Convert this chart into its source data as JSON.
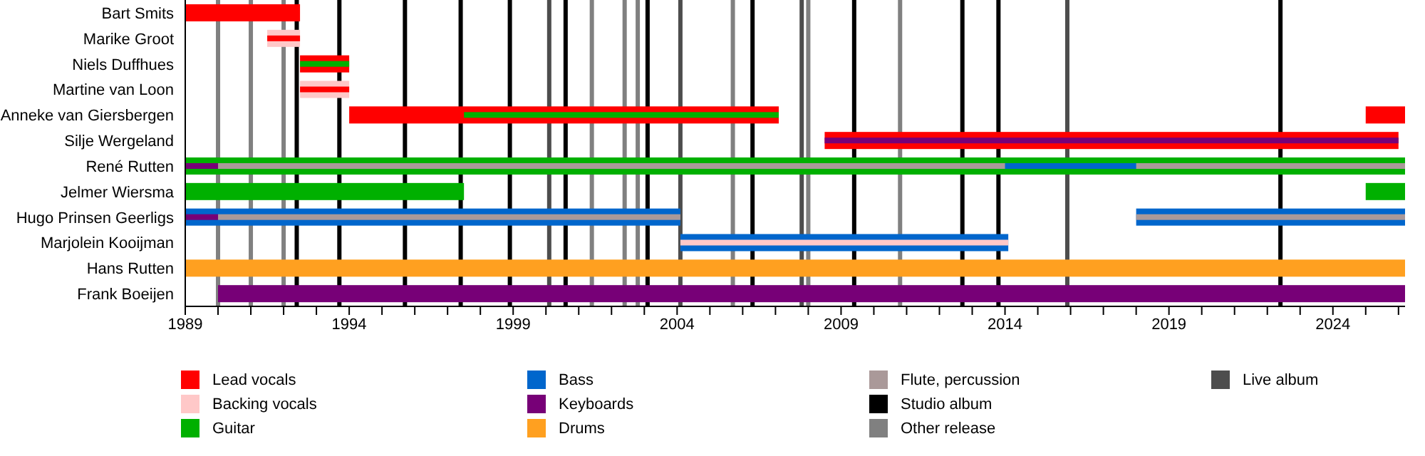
{
  "chart_data": {
    "type": "bar",
    "orientation": "horizontal",
    "categories": [
      "Bart Smits",
      "Marike Groot",
      "Niels Duffhues",
      "Martine van Loon",
      "Anneke van Giersbergen",
      "Silje Wergeland",
      "René Rutten",
      "Jelmer Wiersma",
      "Hugo Prinsen Geerligs",
      "Marjolein Kooijman",
      "Hans Rutten",
      "Frank Boeijen"
    ],
    "series": [
      {
        "name": "Lead vocals",
        "color": "#ff0000",
        "base": [
          1989,
          null,
          1992.5,
          null,
          1994,
          2008.5,
          null,
          null,
          null,
          null,
          null,
          null
        ],
        "values": [
          3.5,
          null,
          1.5,
          null,
          13.1,
          17.5,
          null,
          null,
          null,
          null,
          null,
          null
        ]
      },
      {
        "name": "Backing vocals",
        "color": "#ffc8c8",
        "base": [
          null,
          1991.5,
          null,
          1992.5,
          null,
          null,
          null,
          null,
          null,
          null,
          null,
          null
        ],
        "values": [
          null,
          1,
          null,
          1.5,
          null,
          null,
          null,
          null,
          null,
          null,
          null,
          null
        ]
      },
      {
        "name": "Guitar",
        "color": "#00b000",
        "base": [
          null,
          null,
          null,
          null,
          null,
          null,
          1989,
          1989,
          null,
          null,
          null,
          null
        ],
        "values": [
          null,
          null,
          null,
          null,
          null,
          null,
          37.2,
          8.5,
          null,
          null,
          null,
          null
        ]
      },
      {
        "name": "Bass",
        "color": "#0066cc",
        "base": [
          null,
          null,
          null,
          null,
          null,
          null,
          null,
          null,
          1989,
          2004.1,
          null,
          null
        ],
        "values": [
          null,
          null,
          null,
          null,
          null,
          null,
          null,
          null,
          15.1,
          10,
          null,
          null
        ]
      },
      {
        "name": "Keyboards",
        "color": "#770077",
        "base": [
          null,
          null,
          null,
          null,
          null,
          null,
          null,
          null,
          null,
          null,
          null,
          1990
        ],
        "values": [
          null,
          null,
          null,
          null,
          null,
          null,
          null,
          null,
          null,
          null,
          null,
          36.2
        ]
      },
      {
        "name": "Drums",
        "color": "#ffa020",
        "base": [
          null,
          null,
          null,
          null,
          null,
          null,
          null,
          null,
          null,
          null,
          1989,
          null
        ],
        "values": [
          null,
          null,
          null,
          null,
          null,
          null,
          null,
          null,
          null,
          null,
          37.2,
          null
        ]
      },
      {
        "color": "#ff0000",
        "base": [
          null,
          1991.5,
          null,
          1992.5,
          2025,
          null,
          null,
          null,
          null,
          null,
          null,
          null
        ],
        "values": [
          null,
          1,
          null,
          1.5,
          1.2,
          null,
          null,
          null,
          null,
          null,
          null,
          null
        ]
      },
      {
        "color": "#00b000",
        "base": [
          null,
          null,
          1992.5,
          null,
          1997.5,
          null,
          null,
          2025,
          null,
          null,
          null,
          null
        ],
        "values": [
          null,
          null,
          1.5,
          null,
          9.6,
          null,
          null,
          1.2,
          null,
          null,
          null,
          null
        ]
      },
      {
        "name": "Flute, percussion",
        "color": "#aa9999",
        "base": [
          null,
          null,
          null,
          null,
          null,
          null,
          1990,
          null,
          1990,
          null,
          null,
          null
        ],
        "values": [
          null,
          null,
          null,
          null,
          null,
          null,
          36.2,
          null,
          14.1,
          null,
          null,
          null
        ]
      },
      {
        "color": "#0066cc",
        "base": [
          null,
          null,
          null,
          null,
          null,
          null,
          2014,
          null,
          2018,
          null,
          null,
          null
        ],
        "values": [
          null,
          null,
          null,
          null,
          null,
          null,
          4,
          null,
          8.2,
          null,
          null,
          null
        ]
      },
      {
        "color": "#aa9999",
        "base": [
          null,
          null,
          null,
          null,
          null,
          null,
          null,
          null,
          2018,
          null,
          null,
          null
        ],
        "values": [
          null,
          null,
          null,
          null,
          null,
          null,
          null,
          null,
          8.2,
          null,
          null,
          null
        ]
      },
      {
        "color": "#770077",
        "base": [
          null,
          null,
          null,
          null,
          null,
          2008.5,
          1989,
          null,
          1989,
          null,
          null,
          null
        ],
        "values": [
          null,
          null,
          null,
          null,
          null,
          17.5,
          1,
          null,
          1,
          null,
          null,
          null
        ]
      },
      {
        "color": "#ffc8c8",
        "base": [
          null,
          null,
          null,
          null,
          null,
          null,
          null,
          null,
          null,
          2004.1,
          null,
          null
        ],
        "values": [
          null,
          null,
          null,
          null,
          null,
          null,
          null,
          null,
          null,
          10,
          null,
          null
        ]
      }
    ],
    "xlim": [
      1989,
      2026.2
    ],
    "xticks": [
      1989,
      {
        "value": 1990,
        "label": null
      },
      {
        "value": 1991,
        "label": null
      },
      {
        "value": 1992,
        "label": null
      },
      {
        "value": 1993,
        "label": null
      },
      1994,
      {
        "value": 1995,
        "label": null
      },
      {
        "value": 1996,
        "label": null
      },
      {
        "value": 1997,
        "label": null
      },
      {
        "value": 1998,
        "label": null
      },
      1999,
      {
        "value": 2000,
        "label": null
      },
      {
        "value": 2001,
        "label": null
      },
      {
        "value": 2002,
        "label": null
      },
      {
        "value": 2003,
        "label": null
      },
      2004,
      {
        "value": 2005,
        "label": null
      },
      {
        "value": 2006,
        "label": null
      },
      {
        "value": 2007,
        "label": null
      },
      {
        "value": 2008,
        "label": null
      },
      2009,
      {
        "value": 2010,
        "label": null
      },
      {
        "value": 2011,
        "label": null
      },
      {
        "value": 2012,
        "label": null
      },
      {
        "value": 2013,
        "label": null
      },
      2014,
      {
        "value": 2015,
        "label": null
      },
      {
        "value": 2016,
        "label": null
      },
      {
        "value": 2017,
        "label": null
      },
      {
        "value": 2018,
        "label": null
      },
      2019,
      {
        "value": 2020,
        "label": null
      },
      {
        "value": 2021,
        "label": null
      },
      {
        "value": 2022,
        "label": null
      },
      {
        "value": 2023,
        "label": null
      },
      2024,
      {
        "value": 2025,
        "label": null
      },
      {
        "value": 2026,
        "label": null
      }
    ],
    "ref_lines": [
      {
        "axis": "x",
        "value": 1992.4,
        "label": "Studio album",
        "color": "#000000"
      },
      {
        "axis": "x",
        "value": 1993.7,
        "color": "#000000"
      },
      {
        "axis": "x",
        "value": 1995.7,
        "color": "#000000"
      },
      {
        "axis": "x",
        "value": 1997.4,
        "color": "#000000"
      },
      {
        "axis": "x",
        "value": 1998.9,
        "color": "#000000"
      },
      {
        "axis": "x",
        "value": 2000.6,
        "color": "#000000"
      },
      {
        "axis": "x",
        "value": 2003.1,
        "color": "#000000"
      },
      {
        "axis": "x",
        "value": 2006.3,
        "color": "#000000"
      },
      {
        "axis": "x",
        "value": 2009.4,
        "color": "#000000"
      },
      {
        "axis": "x",
        "value": 2012.7,
        "color": "#000000"
      },
      {
        "axis": "x",
        "value": 2013.8,
        "color": "#000000"
      },
      {
        "axis": "x",
        "value": 2022.4,
        "color": "#000000"
      },
      {
        "axis": "x",
        "value": 1990,
        "label": "Other release",
        "color": "#808080"
      },
      {
        "axis": "x",
        "value": 1991,
        "color": "#808080"
      },
      {
        "axis": "x",
        "value": 1992,
        "color": "#808080"
      },
      {
        "axis": "x",
        "value": 2001.4,
        "color": "#808080"
      },
      {
        "axis": "x",
        "value": 2002.4,
        "color": "#808080"
      },
      {
        "axis": "x",
        "value": 2002.8,
        "color": "#808080"
      },
      {
        "axis": "x",
        "value": 2005.7,
        "color": "#808080"
      },
      {
        "axis": "x",
        "value": 2008,
        "color": "#808080"
      },
      {
        "axis": "x",
        "value": 2010.8,
        "color": "#808080"
      },
      {
        "axis": "x",
        "value": 2000.1,
        "label": "Live album",
        "color": "#4d4d4d"
      },
      {
        "axis": "x",
        "value": 2004.1,
        "color": "#4d4d4d"
      },
      {
        "axis": "x",
        "value": 2007.8,
        "color": "#4d4d4d"
      },
      {
        "axis": "x",
        "value": 2015.9,
        "color": "#4d4d4d"
      }
    ],
    "legend": "bottom"
  }
}
